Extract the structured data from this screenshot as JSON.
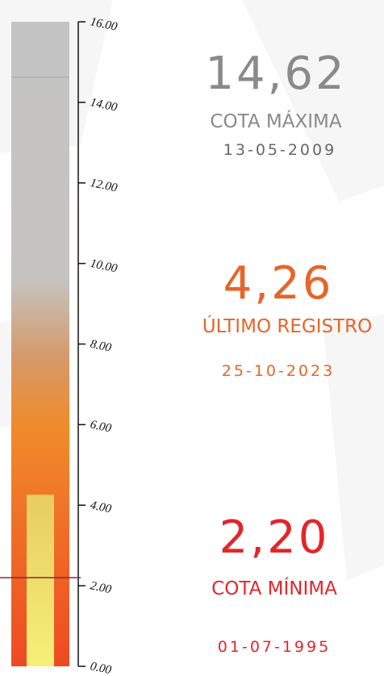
{
  "chart_data": {
    "type": "bar",
    "ylim": [
      0,
      16
    ],
    "yticks": [
      {
        "value": 0,
        "label": "0.00"
      },
      {
        "value": 2,
        "label": "2.00"
      },
      {
        "value": 4,
        "label": "4.00"
      },
      {
        "value": 6,
        "label": "6.00"
      },
      {
        "value": 8,
        "label": "8.00"
      },
      {
        "value": 10,
        "label": "10.00"
      },
      {
        "value": 12,
        "label": "12.00"
      },
      {
        "value": 14,
        "label": "14.00"
      },
      {
        "value": 16,
        "label": "16.00"
      }
    ],
    "series": [
      {
        "name": "COTA MÁXIMA",
        "color": "#8a8a8a",
        "values": [
          14.62
        ],
        "value_labels": [
          "14,62"
        ],
        "dates": [
          "13-05-2009"
        ]
      },
      {
        "name": "ÚLTIMO REGISTRO",
        "color": "#e8642a",
        "values": [
          4.26
        ],
        "value_labels": [
          "4,26"
        ],
        "dates": [
          "25-10-2023"
        ]
      },
      {
        "name": "COTA MÍNIMA",
        "color": "#e3262a",
        "values": [
          2.2
        ],
        "value_labels": [
          "2,20"
        ],
        "dates": [
          "01-07-1995"
        ]
      }
    ]
  }
}
